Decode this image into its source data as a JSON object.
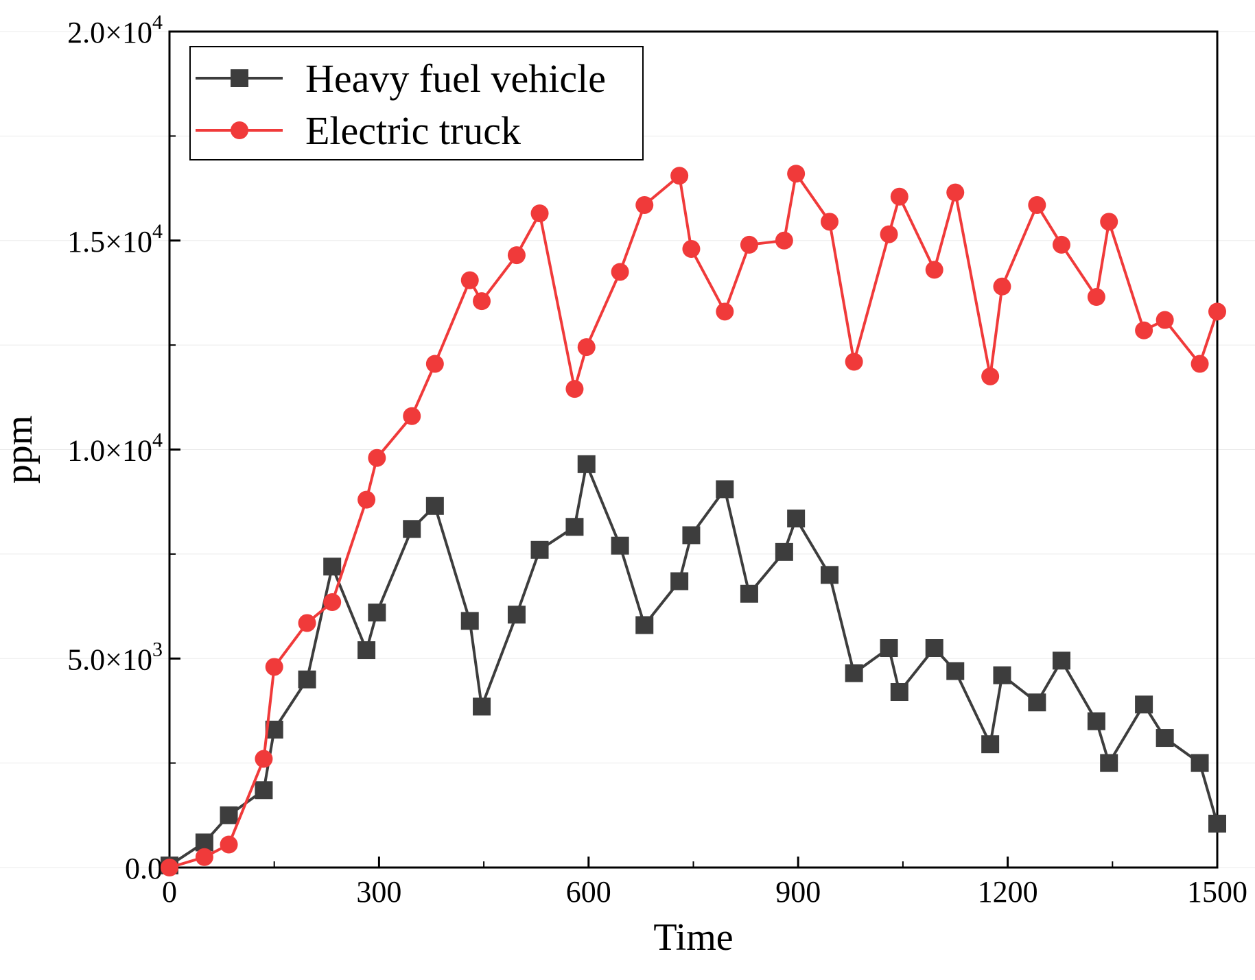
{
  "chart_data": {
    "type": "line",
    "title": "",
    "xlabel": "Time",
    "ylabel": "ppm",
    "xlim": [
      0,
      1500
    ],
    "ylim": [
      0,
      20000
    ],
    "xticks": [
      {
        "value": 0,
        "label": "0"
      },
      {
        "value": 300,
        "label": "300"
      },
      {
        "value": 600,
        "label": "600"
      },
      {
        "value": 900,
        "label": "900"
      },
      {
        "value": 1200,
        "label": "1200"
      },
      {
        "value": 1500,
        "label": "1500"
      }
    ],
    "yticks": [
      {
        "value": 0,
        "mantissa": "0.0",
        "exponent": ""
      },
      {
        "value": 5000,
        "mantissa": "5.0×10",
        "exponent": "3"
      },
      {
        "value": 10000,
        "mantissa": "1.0×10",
        "exponent": "4"
      },
      {
        "value": 15000,
        "mantissa": "1.5×10",
        "exponent": "4"
      },
      {
        "value": 20000,
        "mantissa": "2.0×10",
        "exponent": "4"
      }
    ],
    "grid": "faint horizontal",
    "legend_position": "top-left",
    "series": [
      {
        "name": "Heavy fuel vehicle",
        "color": "#3d3d3d",
        "marker": "square",
        "x": [
          0,
          50,
          85,
          135,
          150,
          197,
          233,
          282,
          297,
          347,
          380,
          430,
          447,
          497,
          530,
          580,
          597,
          645,
          680,
          730,
          747,
          795,
          830,
          880,
          897,
          945,
          980,
          1030,
          1045,
          1095,
          1125,
          1175,
          1192,
          1242,
          1277,
          1327,
          1345,
          1395,
          1425,
          1475,
          1500
        ],
        "y": [
          50,
          600,
          1250,
          1850,
          3300,
          4500,
          7200,
          5200,
          6100,
          8100,
          8650,
          5900,
          3850,
          6050,
          7600,
          8150,
          9650,
          7700,
          5800,
          6850,
          7950,
          9050,
          6550,
          7550,
          8350,
          7000,
          4650,
          5250,
          4200,
          5250,
          4700,
          2950,
          4600,
          3950,
          4950,
          3500,
          2500,
          3900,
          3100,
          2500,
          1050
        ]
      },
      {
        "name": "Electric truck",
        "color": "#f03a3a",
        "marker": "circle",
        "x": [
          0,
          50,
          85,
          135,
          150,
          197,
          233,
          282,
          297,
          347,
          380,
          430,
          447,
          497,
          530,
          580,
          597,
          645,
          680,
          730,
          747,
          795,
          830,
          880,
          897,
          945,
          980,
          1030,
          1045,
          1095,
          1125,
          1175,
          1192,
          1242,
          1277,
          1327,
          1345,
          1395,
          1425,
          1475,
          1500
        ],
        "y": [
          0,
          250,
          550,
          2600,
          4800,
          5850,
          6350,
          8800,
          9800,
          10800,
          12050,
          14050,
          13550,
          14650,
          15650,
          11450,
          12450,
          14250,
          15850,
          16550,
          14800,
          13300,
          14900,
          15000,
          16600,
          15450,
          12100,
          15150,
          16050,
          14300,
          16150,
          11750,
          13900,
          15850,
          14900,
          13650,
          15450,
          12850,
          13100,
          12050,
          13300
        ]
      }
    ]
  }
}
